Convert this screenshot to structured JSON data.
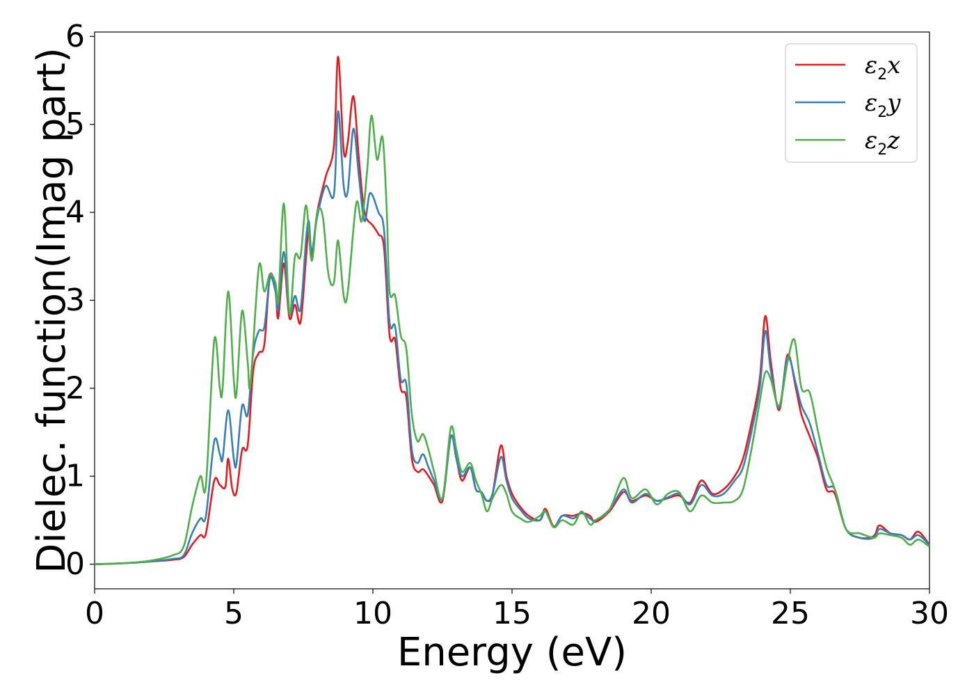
{
  "chart_data": {
    "type": "line",
    "title": "",
    "xlabel": "Energy (eV)",
    "ylabel": "Dielec. function(Imag part)",
    "xlim": [
      0,
      30
    ],
    "ylim": [
      -0.28,
      6.05
    ],
    "xticks": [
      0,
      5,
      10,
      15,
      20,
      25,
      30
    ],
    "yticks": [
      0,
      1,
      2,
      3,
      4,
      5,
      6
    ],
    "grid": false,
    "legend_position": "top-right",
    "series": [
      {
        "name": "ε2x",
        "color": "#e41a1c",
        "points": [
          [
            0,
            0
          ],
          [
            1,
            0.01
          ],
          [
            2,
            0.03
          ],
          [
            2.8,
            0.05
          ],
          [
            3.2,
            0.08
          ],
          [
            3.5,
            0.22
          ],
          [
            3.8,
            0.33
          ],
          [
            4.0,
            0.35
          ],
          [
            4.3,
            0.95
          ],
          [
            4.5,
            0.9
          ],
          [
            4.7,
            0.88
          ],
          [
            4.8,
            1.2
          ],
          [
            4.95,
            0.85
          ],
          [
            5.1,
            0.82
          ],
          [
            5.3,
            1.3
          ],
          [
            5.5,
            1.35
          ],
          [
            5.7,
            2.2
          ],
          [
            5.9,
            2.4
          ],
          [
            6.1,
            2.5
          ],
          [
            6.3,
            3.28
          ],
          [
            6.5,
            3.1
          ],
          [
            6.6,
            2.8
          ],
          [
            6.8,
            3.42
          ],
          [
            7.0,
            2.8
          ],
          [
            7.2,
            2.95
          ],
          [
            7.4,
            2.75
          ],
          [
            7.6,
            3.5
          ],
          [
            7.7,
            3.85
          ],
          [
            7.8,
            3.5
          ],
          [
            8.0,
            4.0
          ],
          [
            8.3,
            4.4
          ],
          [
            8.6,
            4.75
          ],
          [
            8.75,
            5.77
          ],
          [
            8.95,
            4.7
          ],
          [
            9.1,
            4.8
          ],
          [
            9.3,
            5.32
          ],
          [
            9.5,
            4.6
          ],
          [
            9.7,
            4.0
          ],
          [
            10.0,
            3.85
          ],
          [
            10.2,
            3.75
          ],
          [
            10.4,
            3.6
          ],
          [
            10.6,
            2.6
          ],
          [
            10.8,
            2.55
          ],
          [
            11.0,
            2.0
          ],
          [
            11.2,
            1.9
          ],
          [
            11.4,
            1.2
          ],
          [
            11.6,
            1.05
          ],
          [
            11.8,
            1.08
          ],
          [
            12.0,
            1.0
          ],
          [
            12.2,
            0.9
          ],
          [
            12.5,
            0.72
          ],
          [
            12.8,
            1.45
          ],
          [
            13.0,
            1.2
          ],
          [
            13.2,
            0.95
          ],
          [
            13.5,
            1.1
          ],
          [
            13.7,
            0.85
          ],
          [
            13.9,
            0.82
          ],
          [
            14.1,
            0.72
          ],
          [
            14.3,
            0.8
          ],
          [
            14.6,
            1.35
          ],
          [
            14.8,
            1.0
          ],
          [
            15.0,
            0.8
          ],
          [
            15.3,
            0.65
          ],
          [
            15.6,
            0.55
          ],
          [
            16.0,
            0.5
          ],
          [
            16.2,
            0.63
          ],
          [
            16.5,
            0.43
          ],
          [
            16.8,
            0.55
          ],
          [
            17.2,
            0.55
          ],
          [
            17.5,
            0.58
          ],
          [
            17.8,
            0.55
          ],
          [
            18.0,
            0.48
          ],
          [
            18.5,
            0.6
          ],
          [
            19.0,
            0.82
          ],
          [
            19.3,
            0.72
          ],
          [
            19.8,
            0.78
          ],
          [
            20.2,
            0.72
          ],
          [
            20.6,
            0.75
          ],
          [
            21.0,
            0.78
          ],
          [
            21.4,
            0.7
          ],
          [
            21.8,
            0.95
          ],
          [
            22.2,
            0.8
          ],
          [
            22.6,
            0.85
          ],
          [
            23.0,
            1.0
          ],
          [
            23.3,
            1.2
          ],
          [
            23.6,
            1.6
          ],
          [
            23.9,
            2.1
          ],
          [
            24.1,
            2.82
          ],
          [
            24.3,
            2.3
          ],
          [
            24.6,
            1.75
          ],
          [
            24.9,
            2.38
          ],
          [
            25.2,
            2.0
          ],
          [
            25.4,
            1.7
          ],
          [
            25.7,
            1.45
          ],
          [
            26.0,
            1.2
          ],
          [
            26.3,
            0.85
          ],
          [
            26.6,
            0.8
          ],
          [
            27.0,
            0.4
          ],
          [
            27.5,
            0.3
          ],
          [
            28.0,
            0.32
          ],
          [
            28.2,
            0.44
          ],
          [
            28.6,
            0.35
          ],
          [
            29.0,
            0.33
          ],
          [
            29.3,
            0.28
          ],
          [
            29.6,
            0.37
          ],
          [
            30,
            0.22
          ]
        ]
      },
      {
        "name": "ε2y",
        "color": "#377eb8",
        "points": [
          [
            0,
            0
          ],
          [
            1,
            0.01
          ],
          [
            2,
            0.03
          ],
          [
            2.8,
            0.06
          ],
          [
            3.2,
            0.1
          ],
          [
            3.5,
            0.35
          ],
          [
            3.8,
            0.52
          ],
          [
            4.0,
            0.55
          ],
          [
            4.3,
            1.4
          ],
          [
            4.5,
            1.25
          ],
          [
            4.6,
            1.2
          ],
          [
            4.8,
            1.75
          ],
          [
            5.0,
            1.2
          ],
          [
            5.1,
            1.15
          ],
          [
            5.3,
            1.8
          ],
          [
            5.5,
            1.7
          ],
          [
            5.7,
            2.4
          ],
          [
            5.9,
            2.65
          ],
          [
            6.1,
            2.7
          ],
          [
            6.3,
            3.25
          ],
          [
            6.5,
            3.1
          ],
          [
            6.6,
            2.9
          ],
          [
            6.8,
            3.55
          ],
          [
            7.0,
            2.85
          ],
          [
            7.2,
            3.05
          ],
          [
            7.4,
            2.9
          ],
          [
            7.6,
            3.7
          ],
          [
            7.7,
            3.9
          ],
          [
            7.8,
            3.55
          ],
          [
            8.0,
            3.95
          ],
          [
            8.3,
            4.3
          ],
          [
            8.6,
            4.2
          ],
          [
            8.75,
            5.15
          ],
          [
            8.95,
            4.3
          ],
          [
            9.1,
            4.25
          ],
          [
            9.3,
            4.95
          ],
          [
            9.5,
            4.4
          ],
          [
            9.7,
            3.9
          ],
          [
            9.9,
            4.22
          ],
          [
            10.2,
            4.0
          ],
          [
            10.4,
            3.8
          ],
          [
            10.6,
            2.75
          ],
          [
            10.8,
            2.7
          ],
          [
            11.0,
            2.1
          ],
          [
            11.2,
            2.05
          ],
          [
            11.4,
            1.3
          ],
          [
            11.6,
            1.15
          ],
          [
            11.8,
            1.25
          ],
          [
            12.0,
            1.1
          ],
          [
            12.2,
            0.95
          ],
          [
            12.5,
            0.75
          ],
          [
            12.8,
            1.45
          ],
          [
            13.0,
            1.2
          ],
          [
            13.2,
            1.0
          ],
          [
            13.5,
            1.1
          ],
          [
            13.7,
            0.85
          ],
          [
            13.9,
            0.82
          ],
          [
            14.1,
            0.72
          ],
          [
            14.3,
            0.8
          ],
          [
            14.6,
            1.22
          ],
          [
            14.8,
            0.95
          ],
          [
            15.0,
            0.75
          ],
          [
            15.3,
            0.62
          ],
          [
            15.6,
            0.52
          ],
          [
            16.0,
            0.5
          ],
          [
            16.2,
            0.6
          ],
          [
            16.5,
            0.42
          ],
          [
            16.8,
            0.55
          ],
          [
            17.2,
            0.52
          ],
          [
            17.5,
            0.58
          ],
          [
            17.8,
            0.52
          ],
          [
            18.0,
            0.5
          ],
          [
            18.5,
            0.62
          ],
          [
            19.0,
            0.85
          ],
          [
            19.3,
            0.7
          ],
          [
            19.8,
            0.8
          ],
          [
            20.2,
            0.72
          ],
          [
            20.6,
            0.76
          ],
          [
            21.0,
            0.8
          ],
          [
            21.4,
            0.68
          ],
          [
            21.8,
            0.9
          ],
          [
            22.2,
            0.78
          ],
          [
            22.6,
            0.8
          ],
          [
            23.0,
            0.95
          ],
          [
            23.3,
            1.1
          ],
          [
            23.6,
            1.5
          ],
          [
            23.9,
            2.0
          ],
          [
            24.1,
            2.65
          ],
          [
            24.3,
            2.2
          ],
          [
            24.6,
            1.78
          ],
          [
            24.9,
            2.35
          ],
          [
            25.2,
            2.05
          ],
          [
            25.4,
            1.8
          ],
          [
            25.7,
            1.6
          ],
          [
            26.0,
            1.25
          ],
          [
            26.3,
            0.9
          ],
          [
            26.6,
            0.85
          ],
          [
            27.0,
            0.4
          ],
          [
            27.5,
            0.3
          ],
          [
            28.0,
            0.3
          ],
          [
            28.2,
            0.4
          ],
          [
            28.6,
            0.35
          ],
          [
            29.0,
            0.33
          ],
          [
            29.3,
            0.28
          ],
          [
            29.6,
            0.33
          ],
          [
            30,
            0.22
          ]
        ]
      },
      {
        "name": "ε2z",
        "color": "#4daf4a",
        "points": [
          [
            0,
            0
          ],
          [
            1,
            0.01
          ],
          [
            2,
            0.04
          ],
          [
            2.8,
            0.1
          ],
          [
            3.2,
            0.2
          ],
          [
            3.5,
            0.65
          ],
          [
            3.8,
            1.0
          ],
          [
            4.0,
            0.9
          ],
          [
            4.3,
            2.55
          ],
          [
            4.5,
            2.0
          ],
          [
            4.6,
            2.0
          ],
          [
            4.8,
            3.1
          ],
          [
            5.0,
            2.1
          ],
          [
            5.1,
            1.95
          ],
          [
            5.3,
            2.88
          ],
          [
            5.5,
            2.3
          ],
          [
            5.6,
            2.05
          ],
          [
            5.9,
            3.38
          ],
          [
            6.1,
            3.1
          ],
          [
            6.3,
            3.3
          ],
          [
            6.5,
            3.2
          ],
          [
            6.6,
            3.0
          ],
          [
            6.8,
            4.1
          ],
          [
            7.0,
            2.85
          ],
          [
            7.2,
            3.5
          ],
          [
            7.4,
            3.5
          ],
          [
            7.6,
            4.08
          ],
          [
            7.8,
            3.45
          ],
          [
            8.0,
            4.0
          ],
          [
            8.2,
            3.95
          ],
          [
            8.4,
            3.3
          ],
          [
            8.6,
            3.2
          ],
          [
            8.75,
            3.68
          ],
          [
            8.95,
            3.05
          ],
          [
            9.1,
            3.1
          ],
          [
            9.4,
            4.1
          ],
          [
            9.6,
            3.9
          ],
          [
            9.8,
            4.5
          ],
          [
            9.95,
            5.1
          ],
          [
            10.15,
            4.6
          ],
          [
            10.35,
            4.85
          ],
          [
            10.5,
            4.0
          ],
          [
            10.6,
            3.1
          ],
          [
            10.8,
            3.05
          ],
          [
            11.0,
            2.6
          ],
          [
            11.2,
            2.45
          ],
          [
            11.4,
            1.7
          ],
          [
            11.6,
            1.4
          ],
          [
            11.8,
            1.48
          ],
          [
            12.0,
            1.3
          ],
          [
            12.2,
            1.05
          ],
          [
            12.5,
            0.75
          ],
          [
            12.8,
            1.55
          ],
          [
            13.0,
            1.3
          ],
          [
            13.2,
            1.05
          ],
          [
            13.5,
            1.15
          ],
          [
            13.7,
            0.95
          ],
          [
            13.9,
            0.8
          ],
          [
            14.1,
            0.6
          ],
          [
            14.3,
            0.75
          ],
          [
            14.6,
            0.9
          ],
          [
            14.8,
            0.8
          ],
          [
            15.0,
            0.6
          ],
          [
            15.3,
            0.52
          ],
          [
            15.6,
            0.48
          ],
          [
            16.0,
            0.55
          ],
          [
            16.2,
            0.6
          ],
          [
            16.5,
            0.42
          ],
          [
            16.8,
            0.5
          ],
          [
            17.2,
            0.45
          ],
          [
            17.5,
            0.6
          ],
          [
            17.8,
            0.45
          ],
          [
            18.0,
            0.5
          ],
          [
            18.5,
            0.62
          ],
          [
            19.0,
            0.98
          ],
          [
            19.3,
            0.75
          ],
          [
            19.8,
            0.85
          ],
          [
            20.2,
            0.68
          ],
          [
            20.6,
            0.8
          ],
          [
            21.0,
            0.82
          ],
          [
            21.4,
            0.6
          ],
          [
            21.8,
            0.78
          ],
          [
            22.2,
            0.7
          ],
          [
            22.6,
            0.7
          ],
          [
            23.0,
            0.72
          ],
          [
            23.3,
            0.85
          ],
          [
            23.6,
            1.3
          ],
          [
            23.9,
            1.85
          ],
          [
            24.1,
            2.18
          ],
          [
            24.3,
            2.1
          ],
          [
            24.6,
            1.8
          ],
          [
            24.9,
            2.3
          ],
          [
            25.15,
            2.55
          ],
          [
            25.4,
            2.0
          ],
          [
            25.7,
            1.95
          ],
          [
            26.0,
            1.5
          ],
          [
            26.3,
            1.1
          ],
          [
            26.6,
            0.85
          ],
          [
            27.0,
            0.4
          ],
          [
            27.5,
            0.35
          ],
          [
            28.0,
            0.3
          ],
          [
            28.2,
            0.35
          ],
          [
            28.6,
            0.33
          ],
          [
            29.0,
            0.3
          ],
          [
            29.3,
            0.22
          ],
          [
            29.6,
            0.28
          ],
          [
            30,
            0.2
          ]
        ]
      }
    ]
  }
}
